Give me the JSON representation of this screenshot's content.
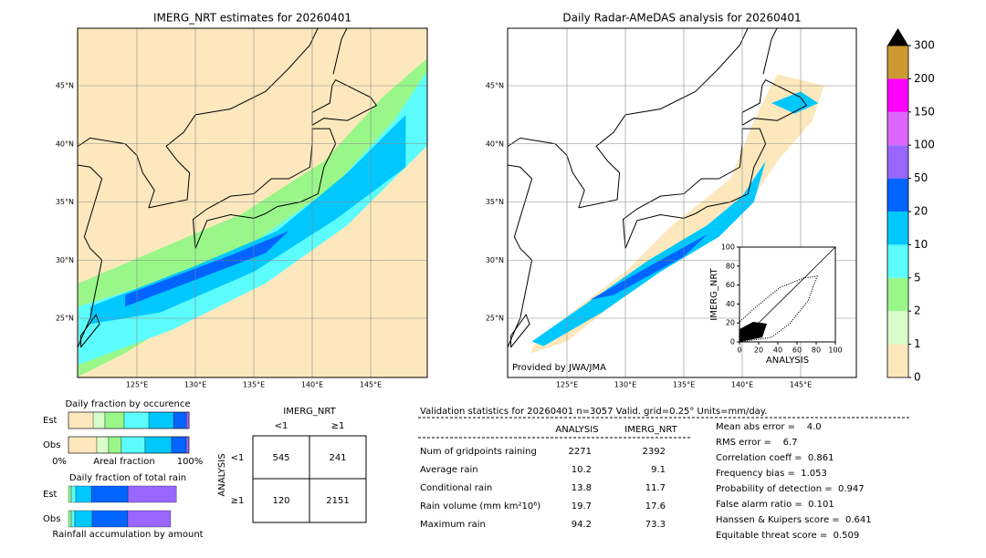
{
  "maps": [
    {
      "title": "IMERG_NRT estimates for 20260401",
      "lat_labels": [
        "45°N",
        "40°N",
        "35°N",
        "30°N",
        "25°N"
      ],
      "lon_labels": [
        "125°E",
        "130°E",
        "135°E",
        "140°E",
        "145°E"
      ]
    },
    {
      "title": "Daily Radar-AMeDAS analysis for 20260401",
      "lat_labels": [
        "45°N",
        "40°N",
        "35°N",
        "30°N",
        "25°N"
      ],
      "lon_labels": [
        "125°E",
        "130°E",
        "135°E",
        "140°E",
        "145°E"
      ],
      "credit": "Provided by JWA/JMA"
    }
  ],
  "colorbar": {
    "ticks": [
      0,
      1,
      2,
      5,
      10,
      20,
      50,
      100,
      150,
      200,
      300
    ],
    "colors": [
      "#fde8bd",
      "#d9fccb",
      "#99f78a",
      "#5cfcfc",
      "#00c8ff",
      "#0064ff",
      "#9966ff",
      "#dd66ff",
      "#ff00ff",
      "#cc9933"
    ],
    "extend_color": "#000000"
  },
  "scatter": {
    "xlabel": "ANALYSIS",
    "ylabel": "IMERG_NRT",
    "xlim": [
      0,
      100
    ],
    "ylim": [
      0,
      100
    ],
    "xticks": [
      0,
      20,
      40,
      60,
      80,
      100
    ],
    "yticks": [
      0,
      20,
      40,
      60,
      80,
      100
    ]
  },
  "occurrence": {
    "title": "Daily fraction by occurence",
    "rows": [
      "Est",
      "Obs"
    ],
    "left_label": "0%",
    "axis_label": "Areal fraction",
    "right_label": "100%",
    "colors": [
      "#fde8bd",
      "#d9fccb",
      "#99f78a",
      "#5cfcfc",
      "#00c8ff",
      "#0064ff",
      "#9966ff"
    ],
    "values": [
      [
        20.5,
        9.8,
        15.9,
        20.5,
        20.5,
        10.6,
        2.3
      ],
      [
        23.5,
        9.8,
        10.6,
        19.7,
        22.0,
        12.1,
        2.3
      ]
    ]
  },
  "total": {
    "title": "Daily fraction of total rain",
    "rows": [
      "Est",
      "Obs"
    ],
    "footer": "Rainfall accumulation by amount",
    "colors": [
      "#99f78a",
      "#5cfcfc",
      "#00c8ff",
      "#0064ff",
      "#9966ff"
    ],
    "values": [
      [
        2.3,
        3.8,
        12.9,
        30.3,
        40.2
      ],
      [
        2.3,
        3.0,
        14.4,
        29.5,
        35.6
      ]
    ]
  },
  "contingency": {
    "col_title": "IMERG_NRT",
    "row_title": "ANALYSIS",
    "cols": [
      "<1",
      "≥1"
    ],
    "rows": [
      "<1",
      "≥1"
    ],
    "cells": [
      [
        545,
        241
      ],
      [
        120,
        2151
      ]
    ]
  },
  "validation": {
    "header": "Validation statistics for 20260401  n=3057 Valid. grid=0.25° Units=mm/day.",
    "columns": [
      "ANALYSIS",
      "IMERG_NRT"
    ],
    "rows": [
      {
        "label": "Num of gridpoints raining",
        "values": [
          2271,
          2392
        ]
      },
      {
        "label": "Average rain",
        "values": [
          10.2,
          9.1
        ]
      },
      {
        "label": "Conditional rain",
        "values": [
          13.8,
          11.7
        ]
      },
      {
        "label": "Rain volume (mm km²10⁶)",
        "values": [
          19.7,
          17.6
        ]
      },
      {
        "label": "Maximum rain",
        "values": [
          94.2,
          73.3
        ]
      }
    ],
    "scores": [
      "Mean abs error =    4.0",
      "RMS error =    6.7",
      "Correlation coeff =  0.861",
      "Frequency bias =  1.053",
      "Probability of detection =  0.947",
      "False alarm ratio =  0.101",
      "Hanssen & Kuipers score =  0.641",
      "Equitable threat score =  0.509"
    ]
  }
}
